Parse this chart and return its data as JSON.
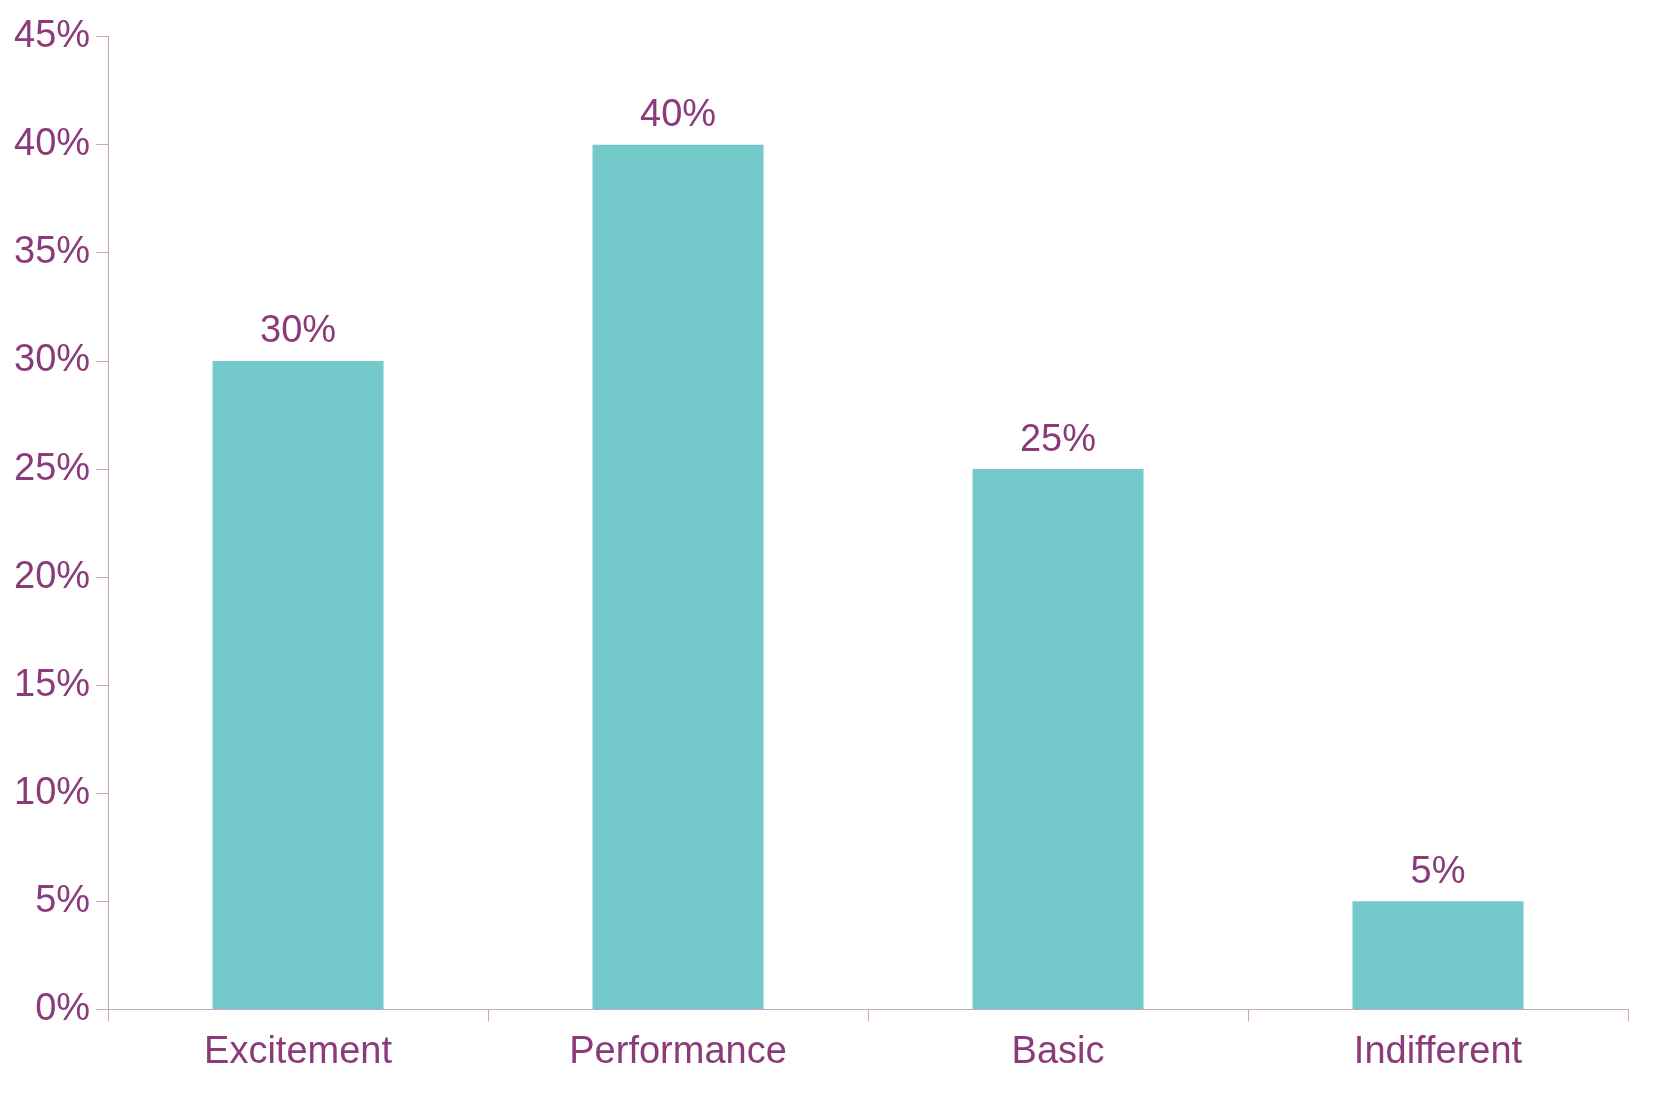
{
  "chart_data": {
    "type": "bar",
    "categories": [
      "Excitement",
      "Performance",
      "Basic",
      "Indifferent"
    ],
    "values": [
      30,
      40,
      25,
      5
    ],
    "color": "#74cacb",
    "value_labels": [
      "30%",
      "40%",
      "25%",
      "5%"
    ],
    "ylim": [
      0,
      45
    ],
    "yticks": [
      {
        "value": 0,
        "label": "0%"
      },
      {
        "value": 5,
        "label": "5%"
      },
      {
        "value": 10,
        "label": "10%"
      },
      {
        "value": 15,
        "label": "15%"
      },
      {
        "value": 20,
        "label": "20%"
      },
      {
        "value": 25,
        "label": "25%"
      },
      {
        "value": 30,
        "label": "30%"
      },
      {
        "value": 35,
        "label": "35%"
      },
      {
        "value": 40,
        "label": "40%"
      },
      {
        "value": 45,
        "label": "45%"
      }
    ],
    "grid": false,
    "legend": false
  }
}
